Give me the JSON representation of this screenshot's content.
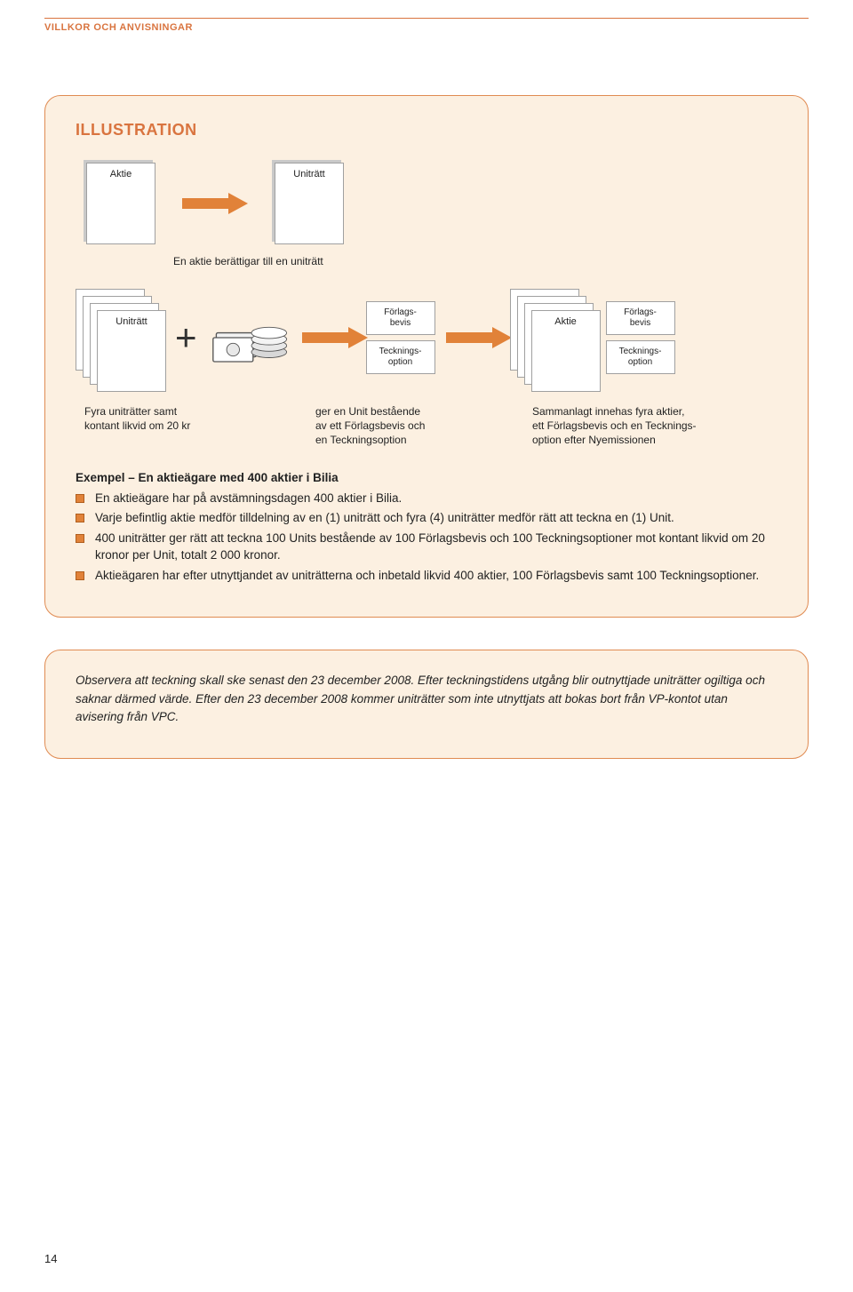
{
  "colors": {
    "accent": "#e18239",
    "accent_border": "#e08b52",
    "box_bg": "#fcf0e1",
    "header_text": "#d9743f",
    "body_text": "#222222",
    "card_border": "#a0a0a0"
  },
  "header": {
    "section": "VILLKOR OCH ANVISNINGAR"
  },
  "illustration": {
    "title": "ILLUSTRATION",
    "row1": {
      "card_left": "Aktie",
      "card_right": "Uniträtt",
      "caption": "En aktie berättigar till en uniträtt"
    },
    "row2": {
      "stack_label": "Uniträtt",
      "mid_top": "Förlags-\nbevis",
      "mid_bot": "Tecknings-\noption",
      "stack2_label": "Aktie",
      "right_top": "Förlags-\nbevis",
      "right_bot": "Tecknings-\noption",
      "caption1": "Fyra uniträtter samt\nkontant likvid om 20 kr",
      "caption2": "ger en Unit bestående\nav ett Förlagsbevis och\nen Teckningsoption",
      "caption3": "Sammanlagt innehas fyra aktier,\nett Förlagsbevis och en Tecknings-\noption efter Nyemissionen"
    },
    "example": {
      "heading": "Exempel – En aktieägare med 400 aktier i Bilia",
      "bullets": [
        "En aktieägare har på avstämningsdagen 400 aktier i Bilia.",
        "Varje befintlig aktie medför tilldelning av en (1) uniträtt och fyra (4) uniträtter medför rätt att teckna en (1) Unit.",
        "400 uniträtter ger rätt att teckna 100 Units bestående av 100 Förlagsbevis och 100 Teckningsoptioner mot kontant likvid  om 20 kronor per Unit, totalt 2 000 kronor.",
        "Aktieägaren har efter utnyttjandet av uniträtterna och inbetald likvid 400 aktier, 100 Förlagsbevis samt 100 Teckningsoptioner."
      ]
    }
  },
  "notice": {
    "text": "Observera att teckning skall ske senast den 23 december 2008. Efter teckningstidens utgång blir outnyttjade uniträtter ogiltiga och saknar därmed värde. Efter den 23 december 2008 kommer uniträtter som inte utnyttjats att bokas bort från VP-kontot utan avisering från VPC."
  },
  "page_number": "14"
}
